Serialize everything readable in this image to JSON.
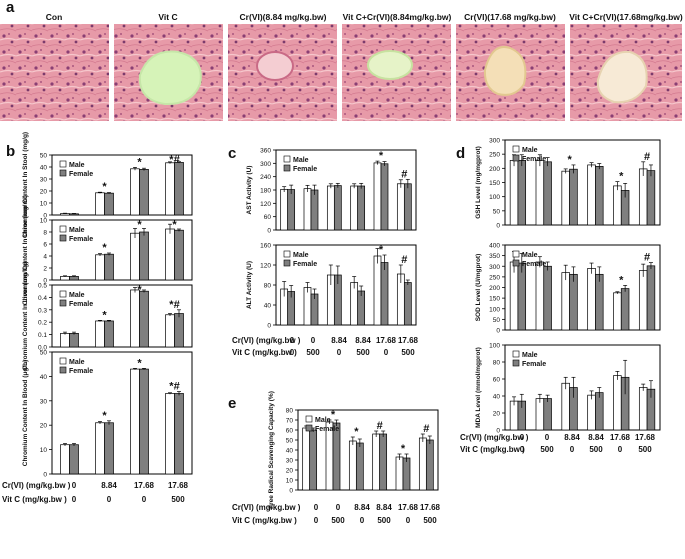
{
  "panels": {
    "a": {
      "letter": "a",
      "images": [
        {
          "label": "Con"
        },
        {
          "label": "Vit C"
        },
        {
          "label": "Cr(VI)(8.84 mg/kg.bw)"
        },
        {
          "label": "Vit C+Cr(VI)(8.84mg/kg.bw)"
        },
        {
          "label": "Cr(VI)(17.68 mg/kg.bw)"
        },
        {
          "label": "Vit C+Cr(VI)(17.68mg/kg.bw)"
        }
      ]
    },
    "b": {
      "letter": "b",
      "x_rows": [
        {
          "label": "Cr(VI) (mg/kg.bw )",
          "values": [
            "0",
            "8.84",
            "17.68",
            "17.68"
          ]
        },
        {
          "label": "Vit C  (mg/kg.bw )",
          "values": [
            "0",
            "0",
            "0",
            "500"
          ]
        }
      ],
      "legend": [
        "Male",
        "Female"
      ],
      "charts": [
        {
          "ylabel": "Chromium Content In Stool (mg/g)",
          "ylim": [
            0,
            50
          ],
          "ticks": [
            "0",
            "10",
            "20",
            "30",
            "40",
            "50"
          ],
          "male": [
            1.2,
            18.5,
            38.5,
            43.5
          ],
          "female": [
            1.0,
            18.2,
            38.0,
            43.8
          ],
          "male_err": [
            0.3,
            0.5,
            1.2,
            0.8
          ],
          "female_err": [
            0.3,
            0.5,
            1.0,
            0.6
          ],
          "marks": [
            "",
            "*",
            "*",
            "*#"
          ]
        },
        {
          "ylabel": "Chromium Content In Urine (mg/ml)",
          "ylim": [
            0,
            10
          ],
          "ticks": [
            "0",
            "2",
            "4",
            "6",
            "8",
            "10"
          ],
          "male": [
            0.6,
            4.2,
            7.8,
            8.5
          ],
          "female": [
            0.6,
            4.3,
            8.0,
            8.3
          ],
          "male_err": [
            0.1,
            0.2,
            0.8,
            0.8
          ],
          "female_err": [
            0.1,
            0.2,
            0.6,
            0.2
          ],
          "marks": [
            "",
            "*",
            "*",
            "*"
          ]
        },
        {
          "ylabel": "Chromium Content In Liver (mg/kg)",
          "ylim": [
            0,
            0.5
          ],
          "ticks": [
            "0.0",
            "0.1",
            "0.2",
            "0.3",
            "0.4",
            "0.5"
          ],
          "male": [
            0.11,
            0.21,
            0.46,
            0.26
          ],
          "female": [
            0.11,
            0.21,
            0.45,
            0.27
          ],
          "male_err": [
            0.01,
            0.005,
            0.02,
            0.01
          ],
          "female_err": [
            0.01,
            0.005,
            0.01,
            0.03
          ],
          "marks": [
            "",
            "*",
            "*",
            "*#"
          ]
        },
        {
          "ylabel": "Chromium Content In Blood (μg/L)",
          "ylim": [
            0,
            50
          ],
          "ticks": [
            "0",
            "10",
            "20",
            "30",
            "40",
            "50"
          ],
          "male": [
            12,
            21,
            43,
            33
          ],
          "female": [
            12,
            21,
            43,
            33
          ],
          "male_err": [
            0.5,
            0.5,
            0.3,
            0.3
          ],
          "female_err": [
            0.5,
            0.8,
            0.3,
            0.8
          ],
          "marks": [
            "",
            "*",
            "*",
            "*#"
          ]
        }
      ]
    },
    "c": {
      "letter": "c",
      "x_rows": [
        {
          "label": "Cr(VI)  (mg/kg.bw )",
          "values": [
            "0",
            "0",
            "8.84",
            "8.84",
            "17.68",
            "17.68"
          ]
        },
        {
          "label": "Vit C  (mg/kg.bw )",
          "values": [
            "0",
            "500",
            "0",
            "500",
            "0",
            "500"
          ]
        }
      ],
      "legend": [
        "Male",
        "Female"
      ],
      "charts": [
        {
          "ylabel": "AST Activity (U)",
          "ylim": [
            0,
            360
          ],
          "ticks": [
            "0",
            "60",
            "120",
            "180",
            "240",
            "300",
            "360"
          ],
          "male": [
            183,
            186,
            198,
            198,
            302,
            208
          ],
          "female": [
            182,
            180,
            200,
            198,
            298,
            208
          ],
          "male_err": [
            12,
            15,
            10,
            10,
            8,
            18
          ],
          "female_err": [
            20,
            22,
            10,
            12,
            10,
            20
          ],
          "marks": [
            "",
            "",
            "",
            "",
            "*",
            "#"
          ]
        },
        {
          "ylabel": "ALT Activity (U)",
          "ylim": [
            0,
            160
          ],
          "ticks": [
            "0",
            "40",
            "80",
            "120",
            "160"
          ],
          "male": [
            72,
            75,
            100,
            85,
            138,
            102
          ],
          "female": [
            67,
            62,
            100,
            68,
            125,
            85
          ],
          "male_err": [
            15,
            10,
            20,
            12,
            15,
            18
          ],
          "female_err": [
            12,
            10,
            18,
            10,
            15,
            5
          ],
          "marks": [
            "",
            "",
            "",
            "",
            "*",
            "#"
          ]
        }
      ]
    },
    "d": {
      "letter": "d",
      "x_rows": [
        {
          "label": "Cr(VI) (mg/kg.bw )",
          "values": [
            "0",
            "0",
            "8.84",
            "8.84",
            "17.68",
            "17.68"
          ]
        },
        {
          "label": "Vit C  (mg/kg.bw )",
          "values": [
            "0",
            "500",
            "0",
            "500",
            "0",
            "500"
          ]
        }
      ],
      "legend": [
        "Male",
        "Female"
      ],
      "charts": [
        {
          "ylabel": "GSH Level (mg/mgprot)",
          "ylim": [
            0,
            300
          ],
          "ticks": [
            "0",
            "50",
            "100",
            "150",
            "200",
            "250",
            "300"
          ],
          "male": [
            228,
            228,
            190,
            212,
            138,
            198
          ],
          "female": [
            228,
            223,
            197,
            207,
            122,
            192
          ],
          "male_err": [
            20,
            20,
            8,
            8,
            15,
            25
          ],
          "female_err": [
            20,
            15,
            15,
            10,
            25,
            20
          ],
          "marks": [
            "",
            "",
            "*",
            "",
            "*",
            "#"
          ]
        },
        {
          "ylabel": "SOD Level (U/mgprot)",
          "ylim": [
            0,
            400
          ],
          "ticks": [
            "0",
            "50",
            "100",
            "150",
            "200",
            "250",
            "300",
            "350",
            "400"
          ],
          "male": [
            320,
            320,
            270,
            290,
            175,
            280
          ],
          "female": [
            315,
            300,
            262,
            262,
            195,
            302
          ],
          "male_err": [
            50,
            25,
            35,
            25,
            5,
            30
          ],
          "female_err": [
            45,
            20,
            35,
            35,
            15,
            15
          ],
          "marks": [
            "",
            "",
            "",
            "",
            "*",
            "#"
          ]
        },
        {
          "ylabel": "MDA Level (mmol/mgprot)",
          "ylim": [
            0,
            100
          ],
          "ticks": [
            "0",
            "20",
            "40",
            "60",
            "80",
            "100"
          ],
          "male": [
            34,
            37,
            55,
            41,
            64,
            50
          ],
          "female": [
            34,
            37,
            50,
            44,
            62,
            48
          ],
          "male_err": [
            5,
            5,
            7,
            5,
            5,
            4
          ],
          "female_err": [
            8,
            4,
            12,
            6,
            20,
            10
          ],
          "marks": [
            "",
            "",
            "",
            "",
            "",
            ""
          ]
        }
      ]
    },
    "e": {
      "letter": "e",
      "x_rows": [
        {
          "label": "Cr(VI)  (mg/kg.bw )",
          "values": [
            "0",
            "0",
            "8.84",
            "8.84",
            "17.68",
            "17.68"
          ]
        },
        {
          "label": "Vit C  (mg/kg.bw )",
          "values": [
            "0",
            "500",
            "0",
            "500",
            "0",
            "500"
          ]
        }
      ],
      "legend": [
        "Male",
        "Female"
      ],
      "charts": [
        {
          "ylabel": "Free Radical Scavenging Capacity (%)",
          "ylim": [
            0,
            80
          ],
          "ticks": [
            "0",
            "10",
            "20",
            "30",
            "40",
            "50",
            "60",
            "70",
            "80"
          ],
          "male": [
            62,
            68,
            49,
            56,
            33,
            52
          ],
          "female": [
            60,
            67,
            47,
            56,
            32,
            50
          ],
          "male_err": [
            2,
            2,
            4,
            3,
            3,
            4
          ],
          "female_err": [
            2,
            3,
            4,
            3,
            4,
            4
          ],
          "marks": [
            "",
            "*",
            "*",
            "#",
            "*",
            "#"
          ]
        }
      ]
    }
  },
  "colors": {
    "male": "#ffffff",
    "female": "#7f7f7f",
    "axis": "#000000"
  }
}
